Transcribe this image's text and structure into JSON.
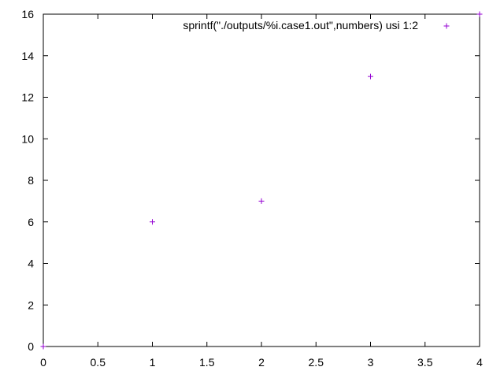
{
  "chart_data": {
    "type": "scatter",
    "title": "",
    "xlabel": "",
    "ylabel": "",
    "xlim": [
      0,
      4
    ],
    "ylim": [
      0,
      16
    ],
    "x_ticks": [
      0,
      0.5,
      1,
      1.5,
      2,
      2.5,
      3,
      3.5,
      4
    ],
    "x_tick_labels": [
      "0",
      "0.5",
      "1",
      "1.5",
      "2",
      "2.5",
      "3",
      "3.5",
      "4"
    ],
    "y_ticks": [
      0,
      2,
      4,
      6,
      8,
      10,
      12,
      14,
      16
    ],
    "y_tick_labels": [
      "0",
      "2",
      "4",
      "6",
      "8",
      "10",
      "12",
      "14",
      "16"
    ],
    "grid": false,
    "legend_position": "top-right",
    "series": [
      {
        "name": "sprintf(\"./outputs/%i.case1.out\",numbers) usi 1:2",
        "color": "#9400d3",
        "marker": "plus",
        "x": [
          0,
          1,
          2,
          3,
          4
        ],
        "y": [
          0,
          6,
          7,
          13,
          16
        ]
      }
    ]
  }
}
